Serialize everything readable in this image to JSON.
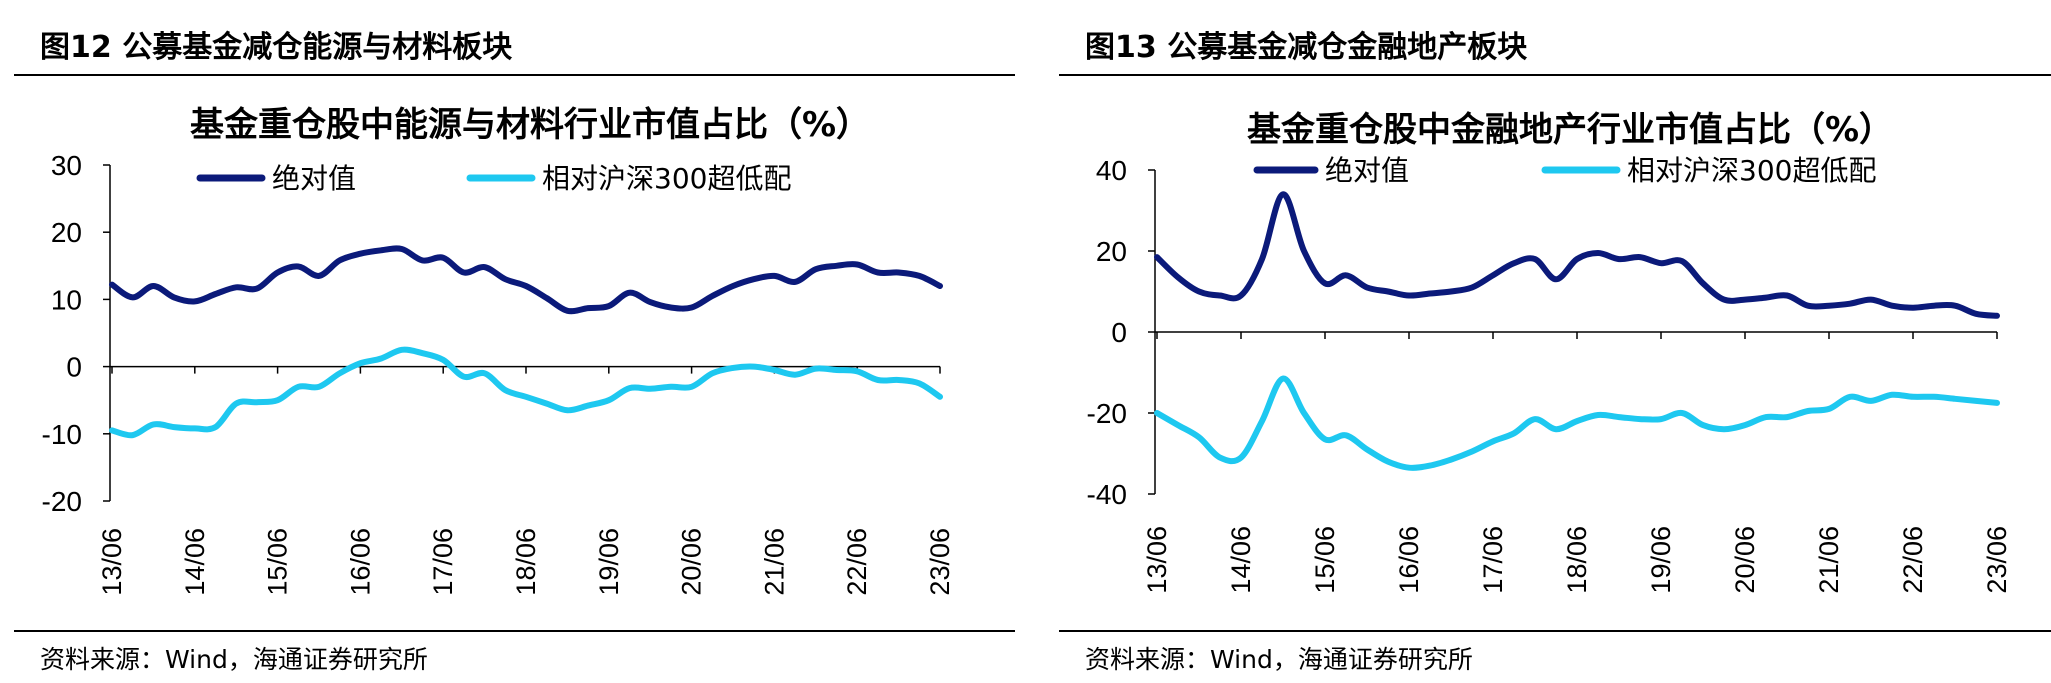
{
  "figures": [
    {
      "figure_title": "图12 公募基金减仓能源与材料板块",
      "source": "资料来源：Wind，海通证券研究所",
      "chart_data": {
        "type": "line",
        "title": "基金重仓股中能源与材料行业市值占比（%）",
        "ylim": [
          -20,
          30
        ],
        "yticks": [
          -20,
          -10,
          0,
          10,
          20,
          30
        ],
        "x_ticks": [
          "13/06",
          "14/06",
          "15/06",
          "16/06",
          "17/06",
          "18/06",
          "19/06",
          "20/06",
          "21/06",
          "22/06",
          "23/06"
        ],
        "x_range": [
          0,
          40
        ],
        "legend_position": "top",
        "x": [
          0,
          1,
          2,
          3,
          4,
          5,
          6,
          7,
          8,
          9,
          10,
          11,
          12,
          13,
          14,
          15,
          16,
          17,
          18,
          19,
          20,
          21,
          22,
          23,
          24,
          25,
          26,
          27,
          28,
          29,
          30,
          31,
          32,
          33,
          34,
          35,
          36,
          37,
          38,
          39,
          40
        ],
        "series": [
          {
            "name": "绝对值",
            "color": "#0b1a7a",
            "values": [
              12.2,
              10.3,
              12.0,
              10.3,
              9.7,
              10.8,
              11.8,
              11.6,
              14.0,
              14.9,
              13.5,
              15.8,
              16.8,
              17.3,
              17.5,
              15.8,
              16.2,
              14.0,
              14.8,
              13.0,
              12.0,
              10.2,
              8.3,
              8.7,
              9.0,
              11.0,
              9.6,
              8.8,
              8.8,
              10.5,
              12.0,
              13.0,
              13.5,
              12.6,
              14.5,
              15.0,
              15.2,
              14.0,
              14.0,
              13.5,
              12.0
            ]
          },
          {
            "name": "相对沪深300超低配",
            "color": "#1ec8f0",
            "values": [
              -9.5,
              -10.2,
              -8.6,
              -9.0,
              -9.2,
              -9.0,
              -5.5,
              -5.3,
              -5.0,
              -3.0,
              -3.0,
              -1.0,
              0.5,
              1.2,
              2.5,
              2.0,
              1.0,
              -1.5,
              -1.0,
              -3.5,
              -4.5,
              -5.5,
              -6.5,
              -5.8,
              -5.0,
              -3.2,
              -3.3,
              -3.0,
              -3.0,
              -1.0,
              -0.2,
              0.0,
              -0.5,
              -1.2,
              -0.3,
              -0.5,
              -0.7,
              -2.0,
              -2.0,
              -2.5,
              -4.5
            ]
          }
        ]
      }
    },
    {
      "figure_title": "图13 公募基金减仓金融地产板块",
      "source": "资料来源：Wind，海通证券研究所",
      "chart_data": {
        "type": "line",
        "title": "基金重仓股中金融地产行业市值占比（%）",
        "ylim": [
          -40,
          40
        ],
        "yticks": [
          -40,
          -20,
          0,
          20,
          40
        ],
        "x_ticks": [
          "13/06",
          "14/06",
          "15/06",
          "16/06",
          "17/06",
          "18/06",
          "19/06",
          "20/06",
          "21/06",
          "22/06",
          "23/06"
        ],
        "x_range": [
          0,
          40
        ],
        "legend_position": "top",
        "x": [
          0,
          1,
          2,
          3,
          4,
          5,
          6,
          7,
          8,
          9,
          10,
          11,
          12,
          13,
          14,
          15,
          16,
          17,
          18,
          19,
          20,
          21,
          22,
          23,
          24,
          25,
          26,
          27,
          28,
          29,
          30,
          31,
          32,
          33,
          34,
          35,
          36,
          37,
          38,
          39,
          40
        ],
        "series": [
          {
            "name": "绝对值",
            "color": "#0b1a7a",
            "values": [
              18.5,
              13.5,
              10.0,
              9.0,
              9.0,
              18.0,
              34.0,
              20.0,
              12.0,
              14.0,
              11.0,
              10.0,
              9.0,
              9.5,
              10.0,
              11.0,
              14.0,
              17.0,
              18.0,
              13.0,
              18.0,
              19.5,
              18.0,
              18.5,
              17.0,
              17.5,
              12.0,
              8.0,
              8.0,
              8.5,
              9.0,
              6.5,
              6.5,
              7.0,
              8.0,
              6.5,
              6.0,
              6.5,
              6.5,
              4.5,
              4.0
            ]
          },
          {
            "name": "相对沪深300超低配",
            "color": "#1ec8f0",
            "values": [
              -20.0,
              -23.0,
              -26.0,
              -31.0,
              -31.0,
              -22.0,
              -11.5,
              -20.0,
              -26.5,
              -25.5,
              -29.0,
              -32.0,
              -33.5,
              -33.0,
              -31.5,
              -29.5,
              -27.0,
              -25.0,
              -21.5,
              -24.0,
              -22.0,
              -20.5,
              -21.0,
              -21.5,
              -21.5,
              -20.0,
              -23.0,
              -24.0,
              -23.0,
              -21.0,
              -21.0,
              -19.5,
              -19.0,
              -16.0,
              -17.0,
              -15.5,
              -16.0,
              -16.0,
              -16.5,
              -17.0,
              -17.5
            ]
          }
        ]
      }
    }
  ]
}
